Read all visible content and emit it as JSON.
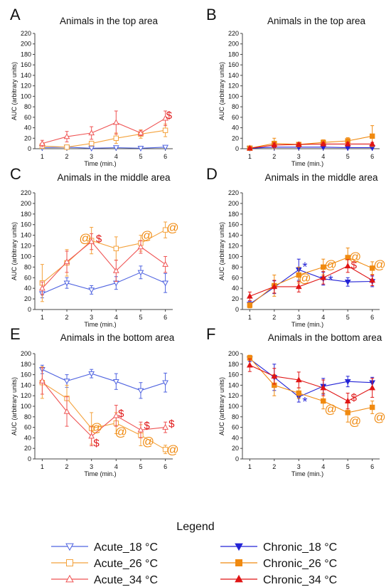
{
  "colors": {
    "acute_18": "#4f63e0",
    "acute_26": "#f4a23c",
    "acute_34": "#ef5454",
    "chronic_18": "#2323d6",
    "chronic_26": "#f08a10",
    "chronic_34": "#e01515",
    "axis": "#444444",
    "text": "#111111"
  },
  "legend": {
    "title": "Legend",
    "placement": "bottom",
    "entries": [
      {
        "key": "acute_18",
        "label": "Acute_18 °C",
        "marker": "triangle-down",
        "filled": false
      },
      {
        "key": "chronic_18",
        "label": "Chronic_18 °C",
        "marker": "triangle-down",
        "filled": true
      },
      {
        "key": "acute_26",
        "label": "Acute_26 °C",
        "marker": "square",
        "filled": false
      },
      {
        "key": "chronic_26",
        "label": "Chronic_26 °C",
        "marker": "square",
        "filled": true
      },
      {
        "key": "acute_34",
        "label": "Acute_34 °C",
        "marker": "triangle-up",
        "filled": false
      },
      {
        "key": "chronic_34",
        "label": "Chronic_34 °C",
        "marker": "triangle-up",
        "filled": true
      }
    ]
  },
  "chart_data": [
    {
      "panel": "A",
      "type": "line",
      "title": "Animals in the top area",
      "xlabel": "Time (min.)",
      "ylabel": "AUC (arbitrary units)",
      "x": [
        1,
        2,
        3,
        4,
        5,
        6
      ],
      "xlim": [
        0.7,
        6.3
      ],
      "ylim": [
        0,
        220
      ],
      "yticks": [
        0,
        20,
        40,
        60,
        80,
        100,
        120,
        140,
        160,
        180,
        200,
        220
      ],
      "series": [
        {
          "key": "acute_18",
          "values": [
            2,
            3,
            1,
            2,
            1,
            3
          ],
          "errors": [
            1,
            1,
            1,
            1,
            1,
            1
          ]
        },
        {
          "key": "acute_26",
          "values": [
            5,
            3,
            10,
            20,
            28,
            35
          ],
          "errors": [
            2,
            2,
            4,
            10,
            8,
            12
          ]
        },
        {
          "key": "acute_34",
          "values": [
            10,
            23,
            30,
            50,
            30,
            58
          ],
          "errors": [
            6,
            10,
            12,
            22,
            5,
            14
          ]
        }
      ],
      "annotations": [
        {
          "text": "$",
          "x": 6.15,
          "y": 65,
          "color": "#e01515"
        }
      ]
    },
    {
      "panel": "B",
      "type": "line",
      "title": "Animals in the top area",
      "xlabel": "Time (min.)",
      "ylabel": "AUC (arbitrary units)",
      "x": [
        1,
        2,
        3,
        4,
        5,
        6
      ],
      "xlim": [
        0.7,
        6.3
      ],
      "ylim": [
        0,
        220
      ],
      "yticks": [
        0,
        20,
        40,
        60,
        80,
        100,
        120,
        140,
        160,
        180,
        200,
        220
      ],
      "series": [
        {
          "key": "chronic_18",
          "values": [
            1,
            3,
            3,
            3,
            2,
            2
          ],
          "errors": [
            1,
            1,
            1,
            1,
            1,
            1
          ]
        },
        {
          "key": "chronic_26",
          "values": [
            1,
            10,
            8,
            12,
            15,
            24
          ],
          "errors": [
            1,
            10,
            3,
            5,
            6,
            20
          ]
        },
        {
          "key": "chronic_34",
          "values": [
            1,
            7,
            8,
            9,
            9,
            9
          ],
          "errors": [
            1,
            4,
            3,
            3,
            3,
            3
          ]
        }
      ],
      "annotations": []
    },
    {
      "panel": "C",
      "type": "line",
      "title": "Animals in the middle area",
      "xlabel": "Time (min.)",
      "ylabel": "AUC (arbitrary units)",
      "x": [
        1,
        2,
        3,
        4,
        5,
        6
      ],
      "xlim": [
        0.7,
        6.3
      ],
      "ylim": [
        0,
        220
      ],
      "yticks": [
        0,
        20,
        40,
        60,
        80,
        100,
        120,
        140,
        160,
        180,
        200,
        220
      ],
      "series": [
        {
          "key": "acute_18",
          "values": [
            30,
            50,
            37,
            50,
            70,
            50
          ],
          "errors": [
            8,
            10,
            8,
            12,
            12,
            18
          ]
        },
        {
          "key": "acute_26",
          "values": [
            50,
            88,
            130,
            115,
            125,
            150
          ],
          "errors": [
            35,
            25,
            25,
            22,
            15,
            15
          ]
        },
        {
          "key": "acute_34",
          "values": [
            40,
            90,
            128,
            73,
            118,
            85
          ],
          "errors": [
            12,
            20,
            15,
            20,
            12,
            15
          ]
        }
      ],
      "annotations": [
        {
          "text": "@",
          "x": 2.75,
          "y": 135,
          "color": "#f08a10"
        },
        {
          "text": "$",
          "x": 3.3,
          "y": 135,
          "color": "#e01515"
        },
        {
          "text": "@",
          "x": 5.25,
          "y": 140,
          "color": "#f08a10"
        },
        {
          "text": "@",
          "x": 6.3,
          "y": 155,
          "color": "#f08a10"
        }
      ]
    },
    {
      "panel": "D",
      "type": "line",
      "title": "Animals in the middle area",
      "xlabel": "Time (min.)",
      "ylabel": "AUC (arbitrary units)",
      "x": [
        1,
        2,
        3,
        4,
        5,
        6
      ],
      "xlim": [
        0.7,
        6.3
      ],
      "ylim": [
        0,
        220
      ],
      "yticks": [
        0,
        20,
        40,
        60,
        80,
        100,
        120,
        140,
        160,
        180,
        200,
        220
      ],
      "series": [
        {
          "key": "chronic_18",
          "values": [
            10,
            42,
            75,
            58,
            52,
            53
          ],
          "errors": [
            5,
            12,
            20,
            12,
            8,
            10
          ]
        },
        {
          "key": "chronic_26",
          "values": [
            8,
            45,
            65,
            80,
            98,
            78
          ],
          "errors": [
            5,
            20,
            15,
            15,
            18,
            12
          ]
        },
        {
          "key": "chronic_34",
          "values": [
            25,
            43,
            43,
            60,
            82,
            55
          ],
          "errors": [
            8,
            12,
            10,
            12,
            12,
            10
          ]
        }
      ],
      "annotations": [
        {
          "text": "*",
          "x": 3.25,
          "y": 80,
          "color": "#2323d6"
        },
        {
          "text": "@",
          "x": 3.25,
          "y": 60,
          "color": "#f08a10"
        },
        {
          "text": "*",
          "x": 4.3,
          "y": 55,
          "color": "#2323d6"
        },
        {
          "text": "@",
          "x": 4.3,
          "y": 85,
          "color": "#f08a10"
        },
        {
          "text": "@",
          "x": 5.3,
          "y": 100,
          "color": "#f08a10"
        },
        {
          "text": "$",
          "x": 5.25,
          "y": 85,
          "color": "#e01515"
        },
        {
          "text": "@",
          "x": 6.3,
          "y": 85,
          "color": "#f08a10"
        }
      ]
    },
    {
      "panel": "E",
      "type": "line",
      "title": "Animals in the bottom area",
      "xlabel": "Time (min.)",
      "ylabel": "AUC (arbitrary units)",
      "x": [
        1,
        2,
        3,
        4,
        5,
        6
      ],
      "xlim": [
        0.7,
        6.3
      ],
      "ylim": [
        0,
        200
      ],
      "yticks": [
        0,
        20,
        40,
        60,
        80,
        100,
        120,
        140,
        160,
        180,
        200
      ],
      "series": [
        {
          "key": "acute_18",
          "values": [
            170,
            148,
            162,
            147,
            130,
            145
          ],
          "errors": [
            8,
            12,
            8,
            15,
            15,
            18
          ]
        },
        {
          "key": "acute_26",
          "values": [
            145,
            115,
            58,
            68,
            45,
            18
          ],
          "errors": [
            30,
            25,
            30,
            20,
            20,
            8
          ]
        },
        {
          "key": "acute_34",
          "values": [
            148,
            90,
            43,
            82,
            55,
            60
          ],
          "errors": [
            25,
            28,
            18,
            20,
            15,
            10
          ]
        }
      ],
      "annotations": [
        {
          "text": "$",
          "x": 3.2,
          "y": 32,
          "color": "#e01515"
        },
        {
          "text": "@",
          "x": 3.2,
          "y": 60,
          "color": "#f08a10"
        },
        {
          "text": "$",
          "x": 4.2,
          "y": 88,
          "color": "#e01515"
        },
        {
          "text": "@",
          "x": 4.2,
          "y": 52,
          "color": "#f08a10"
        },
        {
          "text": "$",
          "x": 5.25,
          "y": 65,
          "color": "#e01515"
        },
        {
          "text": "@",
          "x": 5.3,
          "y": 34,
          "color": "#f08a10"
        },
        {
          "text": "$",
          "x": 6.25,
          "y": 68,
          "color": "#e01515"
        },
        {
          "text": "@",
          "x": 6.3,
          "y": 18,
          "color": "#f08a10"
        }
      ]
    },
    {
      "panel": "F",
      "type": "line",
      "title": "Animals in the bottom area",
      "xlabel": "Time (min.)",
      "ylabel": "AUC (arbitrary units)",
      "x": [
        1,
        2,
        3,
        4,
        5,
        6
      ],
      "xlim": [
        0.7,
        6.3
      ],
      "ylim": [
        0,
        200
      ],
      "yticks": [
        0,
        20,
        40,
        60,
        80,
        100,
        120,
        140,
        160,
        180,
        200
      ],
      "series": [
        {
          "key": "chronic_18",
          "values": [
            190,
            155,
            118,
            138,
            147,
            145
          ],
          "errors": [
            5,
            25,
            10,
            15,
            10,
            10
          ]
        },
        {
          "key": "chronic_26",
          "values": [
            192,
            140,
            125,
            110,
            88,
            98
          ],
          "errors": [
            5,
            20,
            10,
            15,
            18,
            12
          ]
        },
        {
          "key": "chronic_34",
          "values": [
            178,
            157,
            150,
            135,
            110,
            135
          ],
          "errors": [
            12,
            15,
            15,
            15,
            15,
            18
          ]
        }
      ],
      "annotations": [
        {
          "text": "*",
          "x": 3.25,
          "y": 108,
          "color": "#2323d6"
        },
        {
          "text": "@",
          "x": 4.3,
          "y": 95,
          "color": "#f08a10"
        },
        {
          "text": "$",
          "x": 5.25,
          "y": 118,
          "color": "#e01515"
        },
        {
          "text": "@",
          "x": 5.3,
          "y": 72,
          "color": "#f08a10"
        },
        {
          "text": "@",
          "x": 6.3,
          "y": 80,
          "color": "#f08a10"
        }
      ]
    }
  ]
}
